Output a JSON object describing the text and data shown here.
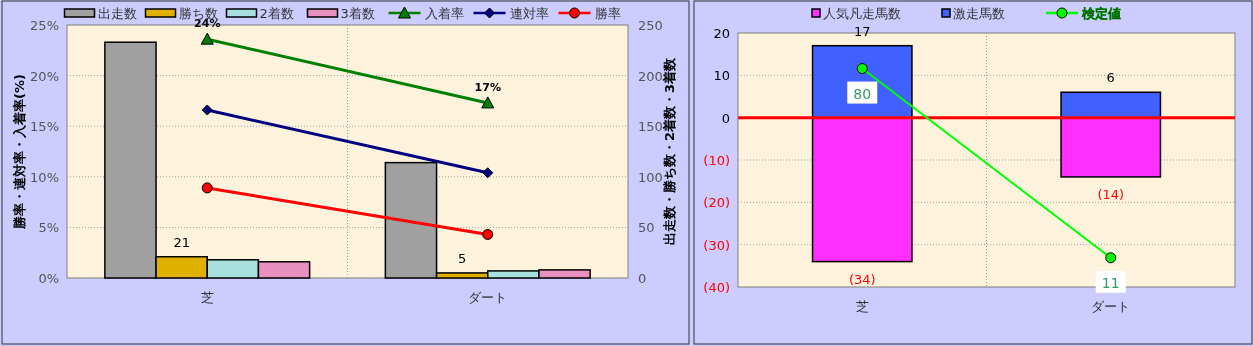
{
  "chart_data": [
    {
      "type": "bar",
      "ylabel": "勝率・連対率・入着率(%)",
      "y2label": "出走数・勝ち数・2着数・3着数",
      "categories": [
        "芝",
        "ダート"
      ],
      "ylim": [
        0,
        25
      ],
      "yticks": [
        {
          "value": 0,
          "label": "0%"
        },
        {
          "value": 5,
          "label": "5%"
        },
        {
          "value": 10,
          "label": "10%"
        },
        {
          "value": 15,
          "label": "15%"
        },
        {
          "value": 20,
          "label": "20%"
        },
        {
          "value": 25,
          "label": "25%"
        }
      ],
      "y2lim": [
        0,
        250
      ],
      "y2ticks": [
        0,
        50,
        100,
        150,
        200,
        250
      ],
      "grid": true,
      "legend": "top",
      "series": [
        {
          "name": "出走数",
          "axis": "y2",
          "color": "#a0a0a0",
          "values": [
            233,
            114
          ]
        },
        {
          "name": "勝ち数",
          "axis": "y2",
          "color": "#e0b000",
          "values": [
            21,
            5
          ],
          "value_labels": [
            "21",
            "5"
          ]
        },
        {
          "name": "2着数",
          "axis": "y2",
          "color": "#a8e0e0",
          "values": [
            18,
            7
          ]
        },
        {
          "name": "3着数",
          "axis": "y2",
          "color": "#e890c0",
          "values": [
            16,
            8
          ]
        },
        {
          "name": "入着率",
          "type": "line",
          "axis": "y",
          "color": "#008000",
          "marker": "triangle",
          "values": [
            23.6,
            17.3
          ],
          "value_labels": [
            "24%",
            "17%"
          ]
        },
        {
          "name": "連対率",
          "type": "line",
          "axis": "y",
          "color": "#000080",
          "marker": "diamond",
          "values": [
            16.6,
            10.4
          ]
        },
        {
          "name": "勝率",
          "type": "line",
          "axis": "y",
          "color": "#ff0000",
          "marker": "circle",
          "values": [
            8.9,
            4.3
          ]
        }
      ]
    },
    {
      "type": "bar",
      "stacked": true,
      "categories": [
        "芝",
        "ダート"
      ],
      "ylim": [
        -40,
        20
      ],
      "yticks": [
        {
          "value": -40,
          "label": "(40)"
        },
        {
          "value": -30,
          "label": "(30)"
        },
        {
          "value": -20,
          "label": "(20)"
        },
        {
          "value": -10,
          "label": "(10)"
        },
        0,
        10,
        20
      ],
      "grid": true,
      "legend": "top",
      "ref_lines": [
        {
          "axis": "y",
          "value": 0,
          "color": "#ff0000"
        }
      ],
      "series": [
        {
          "name": "人気凡走馬数",
          "color": "#ff30ff",
          "values": [
            -34,
            -14
          ],
          "value_labels": [
            "(34)",
            "(14)"
          ]
        },
        {
          "name": "激走馬数",
          "color": "#4060ff",
          "values": [
            17,
            6
          ],
          "value_labels": [
            "17",
            "6"
          ]
        },
        {
          "name": "検定値",
          "type": "line",
          "color": "#00ff00",
          "marker": "circle",
          "values": [
            11.6,
            -33.1
          ]
        }
      ],
      "annotations": [
        {
          "text": "80",
          "x": "芝",
          "y": 11.6
        },
        {
          "text": "11",
          "x": "ダート",
          "y": -33.1
        }
      ]
    }
  ]
}
